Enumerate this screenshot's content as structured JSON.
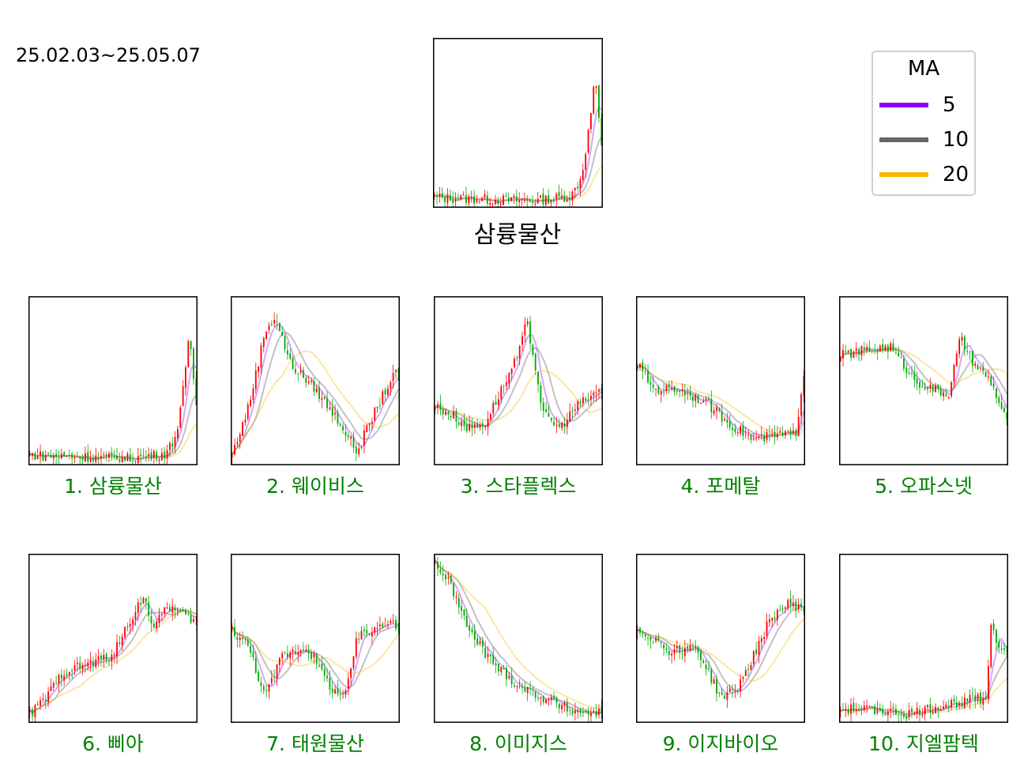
{
  "date_range": "25.02.03~25.05.07",
  "main_title": "삼륭물산",
  "legend": {
    "title": "MA",
    "entries": [
      {
        "label": "5",
        "color": "#8B00FF"
      },
      {
        "label": "10",
        "color": "#666666"
      },
      {
        "label": "20",
        "color": "#F5B800"
      }
    ]
  },
  "colors": {
    "up": "#FF0000",
    "down": "#00AA00",
    "caption": "#008000"
  },
  "chart_data": [
    {
      "type": "candlestick",
      "name": "삼륭물산",
      "shape": [
        [
          0,
          0.06
        ],
        [
          0.3,
          0.05
        ],
        [
          0.6,
          0.04
        ],
        [
          0.82,
          0.07
        ],
        [
          0.88,
          0.18
        ],
        [
          0.93,
          0.5
        ],
        [
          0.96,
          0.78
        ],
        [
          1.0,
          0.35
        ]
      ]
    },
    {
      "type": "candlestick",
      "name": "1. 삼륭물산",
      "shape": [
        [
          0,
          0.06
        ],
        [
          0.3,
          0.05
        ],
        [
          0.6,
          0.04
        ],
        [
          0.82,
          0.07
        ],
        [
          0.88,
          0.18
        ],
        [
          0.93,
          0.5
        ],
        [
          0.96,
          0.78
        ],
        [
          1.0,
          0.35
        ]
      ]
    },
    {
      "type": "candlestick",
      "name": "2. 웨이비스",
      "shape": [
        [
          0,
          0.06
        ],
        [
          0.1,
          0.35
        ],
        [
          0.2,
          0.8
        ],
        [
          0.26,
          0.88
        ],
        [
          0.35,
          0.6
        ],
        [
          0.5,
          0.45
        ],
        [
          0.65,
          0.25
        ],
        [
          0.75,
          0.08
        ],
        [
          0.85,
          0.3
        ],
        [
          0.95,
          0.5
        ],
        [
          1.0,
          0.55
        ]
      ]
    },
    {
      "type": "candlestick",
      "name": "3. 스타플렉스",
      "shape": [
        [
          0,
          0.35
        ],
        [
          0.1,
          0.3
        ],
        [
          0.2,
          0.22
        ],
        [
          0.3,
          0.25
        ],
        [
          0.4,
          0.45
        ],
        [
          0.5,
          0.65
        ],
        [
          0.55,
          0.85
        ],
        [
          0.6,
          0.6
        ],
        [
          0.65,
          0.3
        ],
        [
          0.75,
          0.22
        ],
        [
          0.85,
          0.35
        ],
        [
          1.0,
          0.45
        ]
      ]
    },
    {
      "type": "candlestick",
      "name": "4. 포메탈",
      "shape": [
        [
          0,
          0.6
        ],
        [
          0.1,
          0.45
        ],
        [
          0.25,
          0.45
        ],
        [
          0.4,
          0.38
        ],
        [
          0.55,
          0.25
        ],
        [
          0.7,
          0.15
        ],
        [
          0.85,
          0.18
        ],
        [
          0.95,
          0.18
        ],
        [
          1.0,
          0.55
        ]
      ]
    },
    {
      "type": "candlestick",
      "name": "5. 오파스넷",
      "shape": [
        [
          0,
          0.65
        ],
        [
          0.15,
          0.68
        ],
        [
          0.3,
          0.7
        ],
        [
          0.45,
          0.5
        ],
        [
          0.55,
          0.45
        ],
        [
          0.65,
          0.42
        ],
        [
          0.72,
          0.75
        ],
        [
          0.8,
          0.6
        ],
        [
          0.9,
          0.5
        ],
        [
          1.0,
          0.25
        ],
        [
          1.0,
          0.05
        ]
      ]
    },
    {
      "type": "candlestick",
      "name": "6. 삐아",
      "shape": [
        [
          0,
          0.05
        ],
        [
          0.1,
          0.15
        ],
        [
          0.2,
          0.3
        ],
        [
          0.35,
          0.35
        ],
        [
          0.5,
          0.4
        ],
        [
          0.6,
          0.6
        ],
        [
          0.68,
          0.75
        ],
        [
          0.75,
          0.55
        ],
        [
          0.82,
          0.7
        ],
        [
          0.9,
          0.65
        ],
        [
          1.0,
          0.6
        ]
      ]
    },
    {
      "type": "candlestick",
      "name": "7. 태원물산",
      "shape": [
        [
          0,
          0.55
        ],
        [
          0.1,
          0.45
        ],
        [
          0.2,
          0.15
        ],
        [
          0.3,
          0.4
        ],
        [
          0.45,
          0.45
        ],
        [
          0.6,
          0.2
        ],
        [
          0.68,
          0.15
        ],
        [
          0.75,
          0.5
        ],
        [
          0.85,
          0.55
        ],
        [
          0.95,
          0.62
        ],
        [
          1.0,
          0.55
        ]
      ]
    },
    {
      "type": "candlestick",
      "name": "8. 이미지스",
      "shape": [
        [
          0,
          0.95
        ],
        [
          0.1,
          0.8
        ],
        [
          0.2,
          0.55
        ],
        [
          0.35,
          0.35
        ],
        [
          0.5,
          0.22
        ],
        [
          0.65,
          0.15
        ],
        [
          0.8,
          0.08
        ],
        [
          0.9,
          0.06
        ],
        [
          1.0,
          0.06
        ]
      ]
    },
    {
      "type": "candlestick",
      "name": "9. 이지바이오",
      "shape": [
        [
          0,
          0.55
        ],
        [
          0.1,
          0.5
        ],
        [
          0.2,
          0.42
        ],
        [
          0.35,
          0.45
        ],
        [
          0.45,
          0.25
        ],
        [
          0.5,
          0.15
        ],
        [
          0.6,
          0.2
        ],
        [
          0.7,
          0.4
        ],
        [
          0.8,
          0.62
        ],
        [
          0.9,
          0.7
        ],
        [
          1.0,
          0.68
        ]
      ]
    },
    {
      "type": "candlestick",
      "name": "10. 지엘팜텍",
      "shape": [
        [
          0,
          0.08
        ],
        [
          0.2,
          0.08
        ],
        [
          0.4,
          0.05
        ],
        [
          0.6,
          0.1
        ],
        [
          0.8,
          0.14
        ],
        [
          0.88,
          0.15
        ],
        [
          0.9,
          0.6
        ],
        [
          0.95,
          0.45
        ],
        [
          1.0,
          0.45
        ]
      ]
    }
  ]
}
